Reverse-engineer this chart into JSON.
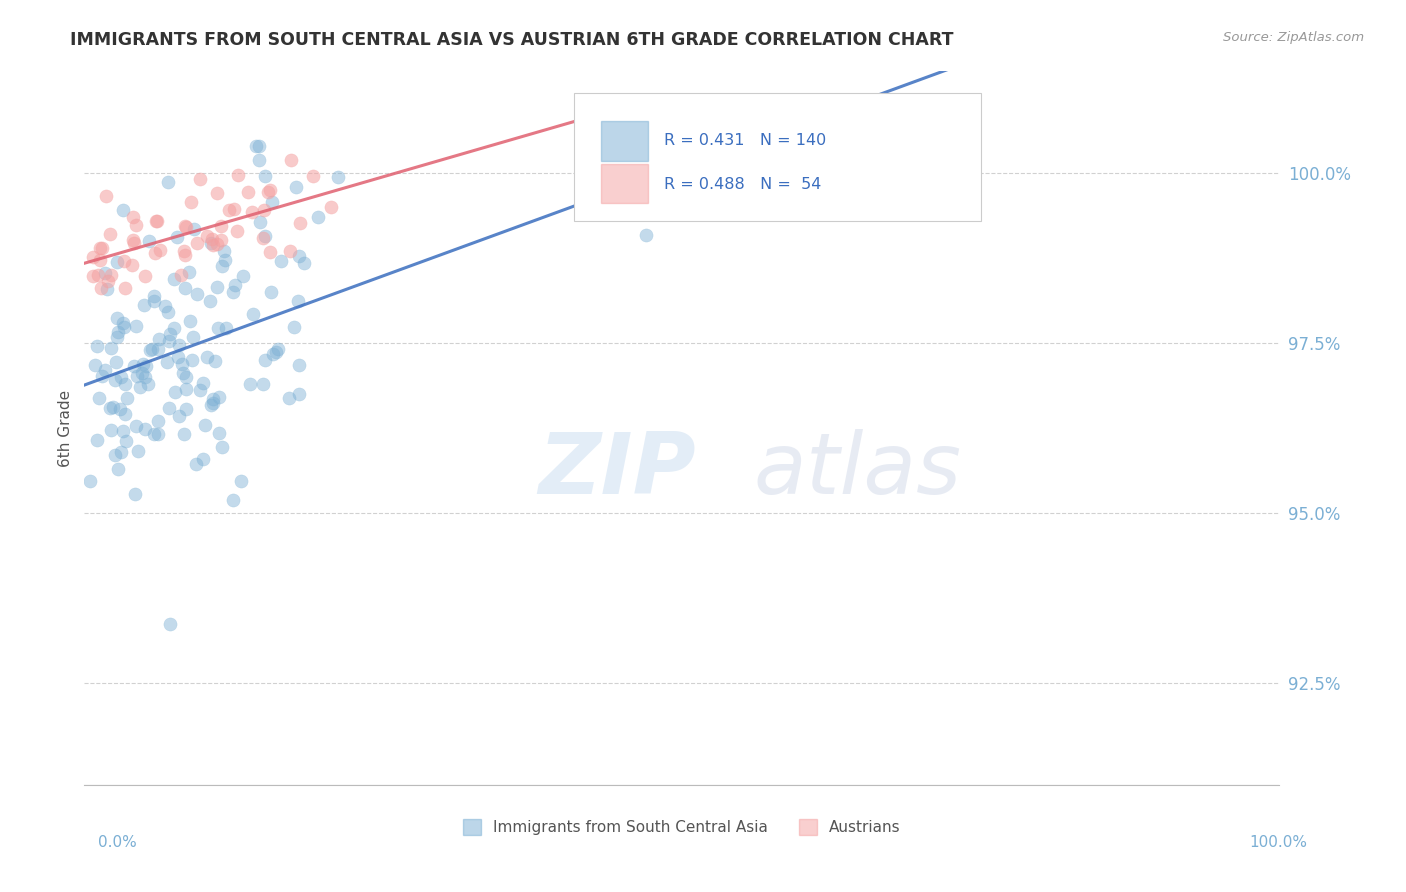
{
  "title": "IMMIGRANTS FROM SOUTH CENTRAL ASIA VS AUSTRIAN 6TH GRADE CORRELATION CHART",
  "source_text": "Source: ZipAtlas.com",
  "ylabel": "6th Grade",
  "xlim": [
    0.0,
    100.0
  ],
  "ylim": [
    91.0,
    101.5
  ],
  "yticks": [
    92.5,
    95.0,
    97.5,
    100.0
  ],
  "ytick_labels": [
    "92.5%",
    "95.0%",
    "97.5%",
    "100.0%"
  ],
  "blue_R": 0.431,
  "blue_N": 140,
  "pink_R": 0.488,
  "pink_N": 54,
  "blue_color": "#7BAFD4",
  "pink_color": "#F4A0A0",
  "blue_line_color": "#3B6EBF",
  "pink_line_color": "#E06070",
  "legend_blue_label": "Immigrants from South Central Asia",
  "legend_pink_label": "Austrians",
  "watermark_zip": "ZIP",
  "watermark_atlas": "atlas",
  "background_color": "#FFFFFF",
  "grid_color": "#CCCCCC",
  "title_color": "#333333",
  "right_label_color": "#7BAFD4",
  "axis_label_color": "#7BAFD4"
}
